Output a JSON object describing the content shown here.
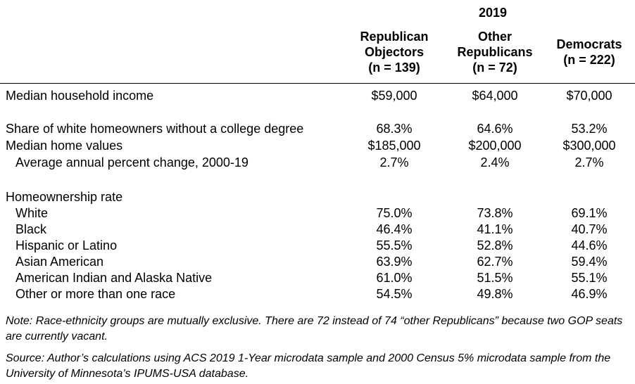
{
  "header": {
    "year": "2019",
    "columns": [
      {
        "lines": [
          "Republican",
          "Objectors",
          "(n = 139)"
        ]
      },
      {
        "lines": [
          "Other",
          "Republicans",
          "(n = 72)"
        ]
      },
      {
        "lines": [
          "Democrats",
          "(n = 222)"
        ]
      }
    ]
  },
  "rows": [
    {
      "label": "Median household income",
      "values": [
        "$59,000",
        "$64,000",
        "$70,000"
      ]
    },
    {
      "label": "Share of white homeowners without a college degree",
      "values": [
        "68.3%",
        "64.6%",
        "53.2%"
      ]
    },
    {
      "label": "Median home values",
      "values": [
        "$185,000",
        "$200,000",
        "$300,000"
      ]
    },
    {
      "label": "Average annual percent change, 2000-19",
      "values": [
        "2.7%",
        "2.4%",
        "2.7%"
      ]
    },
    {
      "label": "Homeownership rate",
      "values": []
    },
    {
      "label": "White",
      "values": [
        "75.0%",
        "73.8%",
        "69.1%"
      ]
    },
    {
      "label": "Black",
      "values": [
        "46.4%",
        "41.1%",
        "40.7%"
      ]
    },
    {
      "label": "Hispanic or Latino",
      "values": [
        "55.5%",
        "52.8%",
        "44.6%"
      ]
    },
    {
      "label": "Asian American",
      "values": [
        "63.9%",
        "62.7%",
        "59.4%"
      ]
    },
    {
      "label": "American Indian and Alaska Native",
      "values": [
        "61.0%",
        "51.5%",
        "55.1%"
      ]
    },
    {
      "label": "Other or more than one race",
      "values": [
        "54.5%",
        "49.8%",
        "46.9%"
      ]
    }
  ],
  "notes": {
    "note": "Note: Race-ethnicity groups are mutually exclusive. There are 72 instead of 74 “other Republicans” because two GOP seats are currently vacant.",
    "source": "Source: Author’s calculations using ACS 2019 1-Year microdata sample and 2000 Census 5% microdata sample from the University of Minnesota’s IPUMS-USA database."
  }
}
